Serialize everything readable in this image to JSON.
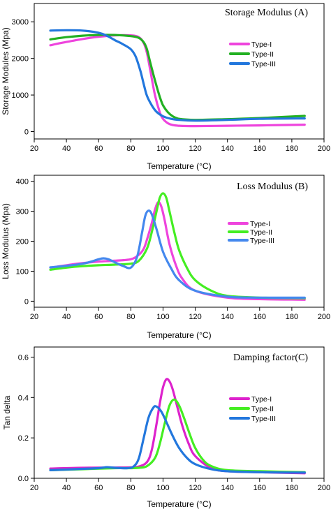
{
  "chart_data": [
    {
      "type": "line",
      "title": "Storage Modulus (A)",
      "xlabel": "Temperature (°C)",
      "ylabel": "Storage Modules (Mpa)",
      "xlim": [
        20,
        200
      ],
      "ylim": [
        -200,
        3500
      ],
      "x_ticks": [
        20,
        40,
        60,
        80,
        100,
        120,
        140,
        160,
        180,
        200
      ],
      "x_tick_labels": [
        "20",
        "40",
        "60",
        "80",
        "100",
        "120",
        "140",
        "160",
        "180",
        "200"
      ],
      "y_ticks": [
        0,
        1000,
        2000,
        3000
      ],
      "y_tick_labels": [
        "0",
        "1000",
        "2000",
        "3000"
      ],
      "grid": false,
      "legend_position": "top-right",
      "series": [
        {
          "name": "Type-I",
          "color": "#ee44dd",
          "x": [
            30,
            40,
            50,
            60,
            70,
            80,
            85,
            88,
            90,
            92,
            95,
            98,
            100,
            103,
            106,
            110,
            120,
            140,
            160,
            188
          ],
          "y": [
            2360,
            2450,
            2530,
            2590,
            2630,
            2630,
            2580,
            2420,
            2150,
            1700,
            1000,
            530,
            350,
            230,
            180,
            160,
            150,
            160,
            170,
            190
          ]
        },
        {
          "name": "Type-II",
          "color": "#22b022",
          "x": [
            30,
            40,
            50,
            60,
            70,
            80,
            85,
            88,
            90,
            92,
            95,
            98,
            100,
            103,
            106,
            110,
            120,
            140,
            160,
            188
          ],
          "y": [
            2520,
            2580,
            2620,
            2640,
            2640,
            2610,
            2560,
            2440,
            2250,
            1900,
            1400,
            950,
            720,
            530,
            420,
            350,
            320,
            340,
            370,
            430
          ]
        },
        {
          "name": "Type-III",
          "color": "#2277dd",
          "x": [
            30,
            40,
            50,
            60,
            65,
            70,
            75,
            80,
            83,
            86,
            88,
            90,
            93,
            96,
            100,
            105,
            110,
            120,
            140,
            160,
            188
          ],
          "y": [
            2760,
            2770,
            2760,
            2700,
            2620,
            2500,
            2390,
            2250,
            2050,
            1650,
            1300,
            980,
            720,
            540,
            420,
            350,
            320,
            300,
            320,
            350,
            360
          ]
        }
      ]
    },
    {
      "type": "line",
      "title": "Loss Modulus (B)",
      "xlabel": "Temperature (°C)",
      "ylabel": "Loss Modulus (Mpa)",
      "xlim": [
        20,
        200
      ],
      "ylim": [
        -20,
        420
      ],
      "x_ticks": [
        20,
        40,
        60,
        80,
        100,
        120,
        140,
        160,
        180,
        200
      ],
      "x_tick_labels": [
        "20",
        "40",
        "60",
        "80",
        "100",
        "120",
        "140",
        "160",
        "180",
        "200"
      ],
      "y_ticks": [
        0,
        100,
        200,
        300,
        400
      ],
      "y_tick_labels": [
        "0",
        "100",
        "200",
        "300",
        "400"
      ],
      "grid": false,
      "legend_position": "right",
      "series": [
        {
          "name": "Type-I",
          "color": "#ee44dd",
          "x": [
            30,
            40,
            50,
            60,
            70,
            80,
            85,
            88,
            90,
            93,
            95,
            97,
            99,
            101,
            104,
            108,
            112,
            120,
            140,
            160,
            188
          ],
          "y": [
            112,
            120,
            127,
            132,
            135,
            140,
            155,
            175,
            205,
            260,
            305,
            330,
            315,
            270,
            190,
            120,
            75,
            35,
            12,
            7,
            5
          ]
        },
        {
          "name": "Type-II",
          "color": "#44ee22",
          "x": [
            30,
            40,
            50,
            60,
            70,
            80,
            85,
            90,
            93,
            96,
            98,
            100,
            102,
            104,
            107,
            110,
            115,
            120,
            130,
            140,
            160,
            188
          ],
          "y": [
            105,
            112,
            117,
            120,
            122,
            125,
            135,
            175,
            230,
            300,
            345,
            360,
            345,
            300,
            230,
            170,
            110,
            70,
            35,
            18,
            12,
            10
          ]
        },
        {
          "name": "Type-III",
          "color": "#4488ee",
          "x": [
            30,
            40,
            50,
            56,
            60,
            63,
            66,
            70,
            75,
            80,
            84,
            87,
            89,
            91,
            93,
            96,
            100,
            105,
            110,
            120,
            140,
            160,
            188
          ],
          "y": [
            113,
            118,
            125,
            133,
            140,
            143,
            140,
            130,
            118,
            112,
            150,
            230,
            285,
            302,
            290,
            240,
            165,
            110,
            70,
            35,
            15,
            12,
            12
          ]
        }
      ]
    },
    {
      "type": "line",
      "title": "Damping factor(C)",
      "xlabel": "Temperature (°C)",
      "ylabel": "Tan delta",
      "xlim": [
        20,
        200
      ],
      "ylim": [
        0,
        0.65
      ],
      "x_ticks": [
        20,
        40,
        60,
        80,
        100,
        120,
        140,
        160,
        180,
        200
      ],
      "x_tick_labels": [
        "20",
        "40",
        "60",
        "80",
        "100",
        "120",
        "140",
        "160",
        "180",
        "200"
      ],
      "y_ticks": [
        0.0,
        0.2,
        0.4,
        0.6
      ],
      "y_tick_labels": [
        "0.0",
        "0.2",
        "0.4",
        "0.6"
      ],
      "grid": false,
      "legend_position": "right",
      "series": [
        {
          "name": "Type-I",
          "color": "#dd22cc",
          "x": [
            30,
            50,
            70,
            80,
            85,
            90,
            93,
            96,
            98,
            100,
            102,
            104,
            106,
            109,
            112,
            116,
            120,
            130,
            140,
            160,
            188
          ],
          "y": [
            0.048,
            0.052,
            0.053,
            0.054,
            0.058,
            0.08,
            0.14,
            0.27,
            0.37,
            0.45,
            0.49,
            0.48,
            0.44,
            0.35,
            0.26,
            0.17,
            0.11,
            0.05,
            0.035,
            0.03,
            0.025
          ]
        },
        {
          "name": "Type-II",
          "color": "#44ee22",
          "x": [
            30,
            50,
            70,
            80,
            85,
            90,
            95,
            98,
            101,
            104,
            107,
            110,
            113,
            117,
            120,
            125,
            130,
            140,
            160,
            188
          ],
          "y": [
            0.04,
            0.045,
            0.05,
            0.05,
            0.052,
            0.06,
            0.1,
            0.17,
            0.27,
            0.36,
            0.39,
            0.36,
            0.3,
            0.21,
            0.15,
            0.09,
            0.06,
            0.04,
            0.035,
            0.03
          ]
        },
        {
          "name": "Type-III",
          "color": "#2277dd",
          "x": [
            30,
            45,
            60,
            65,
            70,
            78,
            82,
            85,
            88,
            91,
            94,
            96,
            99,
            102,
            106,
            110,
            115,
            120,
            130,
            140,
            160,
            188
          ],
          "y": [
            0.04,
            0.045,
            0.05,
            0.055,
            0.052,
            0.05,
            0.06,
            0.1,
            0.2,
            0.3,
            0.35,
            0.355,
            0.33,
            0.28,
            0.21,
            0.15,
            0.1,
            0.07,
            0.045,
            0.035,
            0.03,
            0.028
          ]
        }
      ]
    }
  ]
}
